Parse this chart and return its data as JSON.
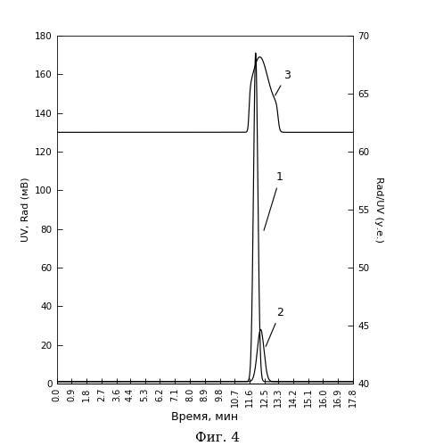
{
  "title": "",
  "xlabel": "Время, мин",
  "ylabel_left": "UV, Rad (мВ)",
  "ylabel_right": "Rad/UV (у.е.)",
  "xlim": [
    0.0,
    17.8
  ],
  "ylim_left": [
    0,
    180
  ],
  "ylim_right": [
    40,
    70
  ],
  "xticks": [
    0.0,
    0.9,
    1.8,
    2.7,
    3.6,
    4.4,
    5.3,
    6.2,
    7.1,
    8.0,
    8.9,
    9.8,
    10.7,
    11.6,
    12.5,
    13.3,
    14.2,
    15.1,
    16.0,
    16.9,
    17.8
  ],
  "yticks_left": [
    0,
    20,
    40,
    60,
    80,
    100,
    120,
    140,
    160,
    180
  ],
  "yticks_right": [
    40,
    45,
    50,
    55,
    60,
    65,
    70
  ],
  "fig_caption": "Фиг. 4",
  "line_color": "#000000",
  "background_color": "#ffffff",
  "label1": "1",
  "label2": "2",
  "label3": "3"
}
